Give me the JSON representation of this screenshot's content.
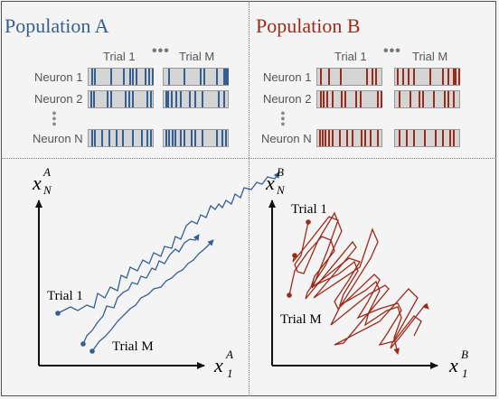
{
  "colors": {
    "population_a": "#365f91",
    "population_b": "#9c2a1a",
    "raster_bg": "#d4d4d4"
  },
  "population_a": {
    "title": "Population A",
    "trial_labels": [
      "Trial 1",
      "Trial M"
    ],
    "ellipsis": "•••",
    "neuron_labels": [
      "Neuron 1",
      "Neuron 2",
      "Neuron N"
    ],
    "vdots": "⋮",
    "plot": {
      "x_axis": {
        "var": "x",
        "sub": "1",
        "sup": "A"
      },
      "y_axis": {
        "var": "x",
        "sub": "N",
        "sup": "A"
      },
      "trial_labels": [
        "Trial 1",
        "Trial M"
      ]
    }
  },
  "population_b": {
    "title": "Population B",
    "trial_labels": [
      "Trial 1",
      "Trial M"
    ],
    "ellipsis": "•••",
    "neuron_labels": [
      "Neuron 1",
      "Neuron 2",
      "Neuron N"
    ],
    "vdots": "⋮",
    "plot": {
      "x_axis": {
        "var": "x",
        "sub": "1",
        "sup": "B"
      },
      "y_axis": {
        "var": "x",
        "sub": "N",
        "sup": "B"
      },
      "trial_labels": [
        "Trial 1",
        "Trial M"
      ]
    }
  }
}
